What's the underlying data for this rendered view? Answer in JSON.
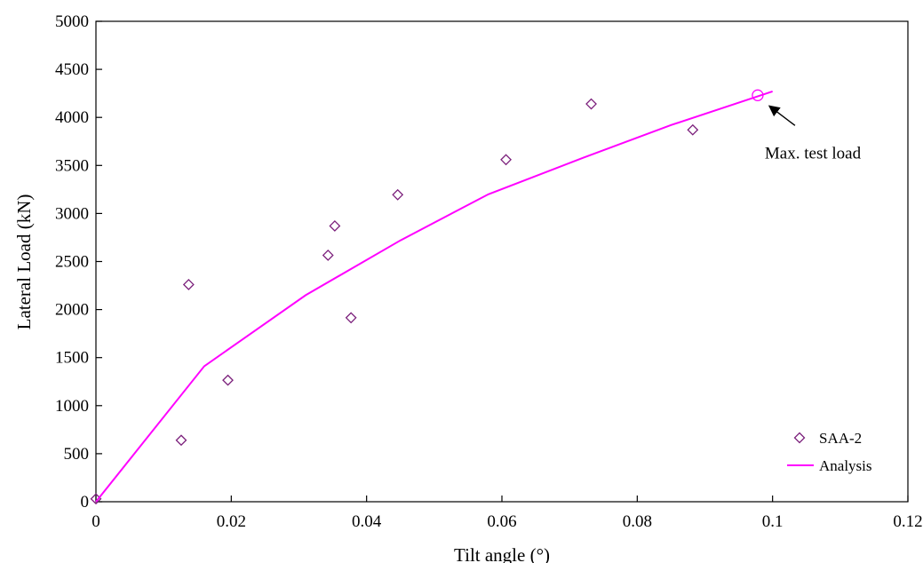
{
  "chart_data": {
    "type": "scatter",
    "title": "",
    "xlabel": "Tilt angle (°)",
    "ylabel": "Lateral Load (kN)",
    "xlim": [
      0,
      0.12
    ],
    "ylim": [
      0,
      5000
    ],
    "x_ticks": [
      "0",
      "0.02",
      "0.04",
      "0.06",
      "0.08",
      "0.1",
      "0.12"
    ],
    "y_ticks": [
      "0",
      "500",
      "1000",
      "1500",
      "2000",
      "2500",
      "3000",
      "3500",
      "4000",
      "4500",
      "5000"
    ],
    "grid": false,
    "legend_position": "bottom-right",
    "series": [
      {
        "name": "SAA-2",
        "kind": "scatter",
        "marker": "diamond",
        "color": "#7b1f7b",
        "points": [
          [
            0.0,
            30
          ],
          [
            0.0126,
            640
          ],
          [
            0.0137,
            2260
          ],
          [
            0.0195,
            1265
          ],
          [
            0.0343,
            2565
          ],
          [
            0.0353,
            2870
          ],
          [
            0.0377,
            1915
          ],
          [
            0.0446,
            3195
          ],
          [
            0.0606,
            3560
          ],
          [
            0.0732,
            4140
          ],
          [
            0.0882,
            3870
          ]
        ]
      },
      {
        "name": "Analysis",
        "kind": "line",
        "color": "#ff00ff",
        "points": [
          [
            0.0,
            0
          ],
          [
            0.016,
            1410
          ],
          [
            0.031,
            2150
          ],
          [
            0.045,
            2720
          ],
          [
            0.058,
            3200
          ],
          [
            0.072,
            3580
          ],
          [
            0.085,
            3920
          ],
          [
            0.1,
            4270
          ]
        ]
      }
    ],
    "annotations": [
      {
        "text": "Max. test load",
        "target": [
          0.0978,
          4230
        ],
        "marker": "circle",
        "color": "#ff00ff"
      }
    ]
  }
}
